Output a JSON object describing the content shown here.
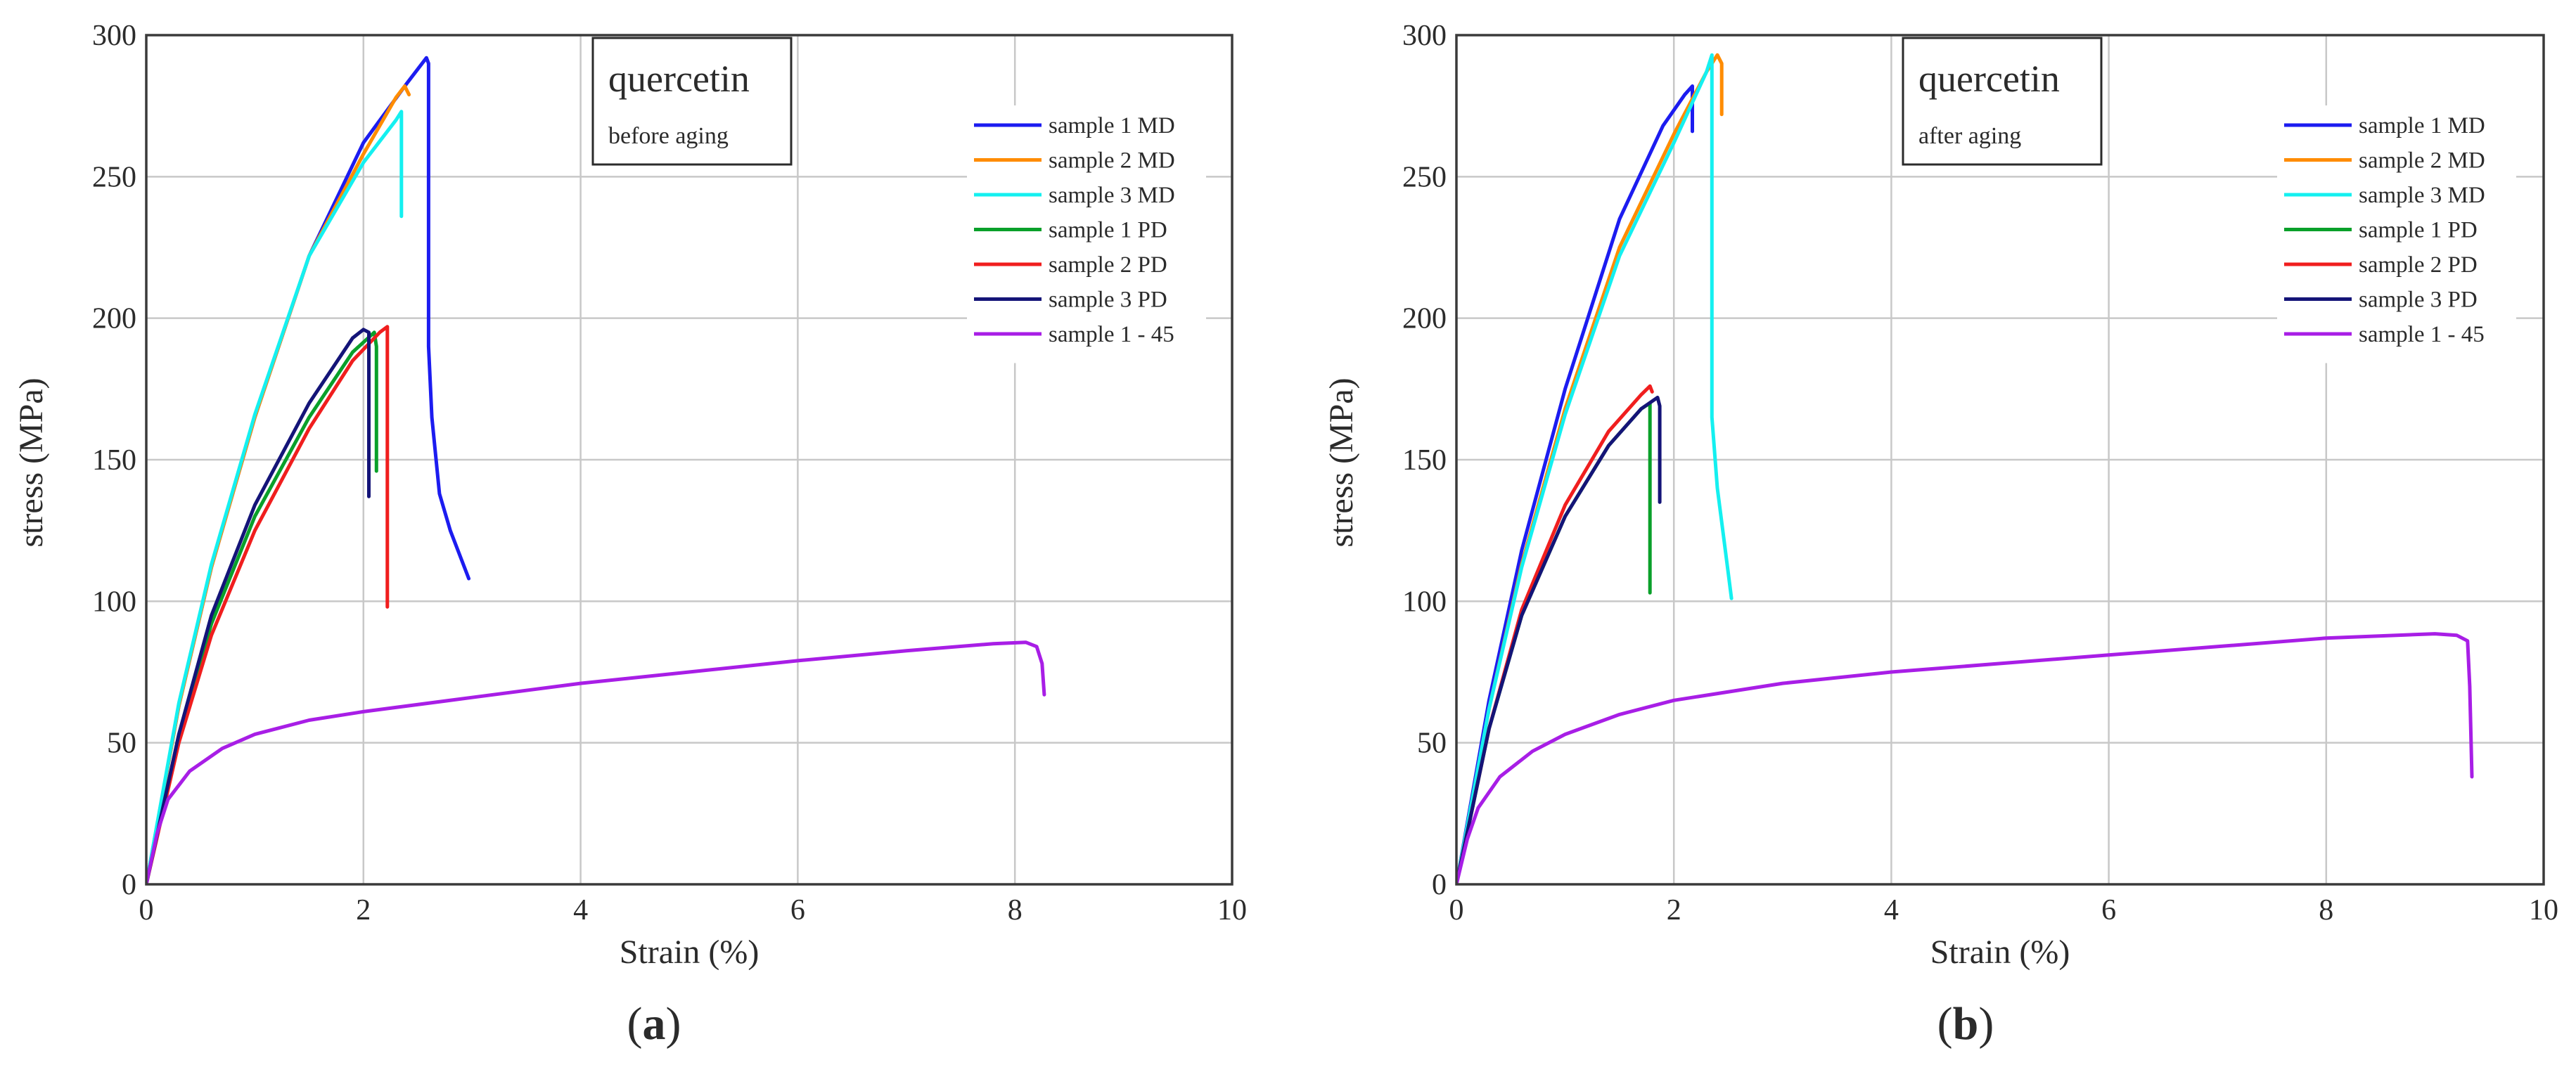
{
  "chart_data": [
    {
      "type": "line",
      "panel_label": "(a)",
      "panel_letter": "a",
      "annotation": {
        "title": "quercetin",
        "subtitle": "before aging"
      },
      "xlabel": "Strain (%)",
      "ylabel": "stress (MPa)",
      "xlim": [
        0,
        10
      ],
      "ylim": [
        0,
        300
      ],
      "xticks": [
        0,
        2,
        4,
        6,
        8,
        10
      ],
      "yticks": [
        0,
        50,
        100,
        150,
        200,
        250,
        300
      ],
      "grid": true,
      "legend_position": "top-right",
      "series": [
        {
          "name": "sample 1 MD",
          "color": "#1c1cf0",
          "points": [
            [
              0,
              0
            ],
            [
              0.3,
              63
            ],
            [
              0.6,
              112
            ],
            [
              1.0,
              165
            ],
            [
              1.5,
              222
            ],
            [
              2.0,
              262
            ],
            [
              2.4,
              283
            ],
            [
              2.58,
              292
            ],
            [
              2.6,
              290
            ],
            [
              2.6,
              190
            ],
            [
              2.63,
              165
            ],
            [
              2.7,
              138
            ],
            [
              2.8,
              125
            ],
            [
              2.97,
              108
            ]
          ]
        },
        {
          "name": "sample 2 MD",
          "color": "#ff8c00",
          "points": [
            [
              0,
              0
            ],
            [
              0.3,
              63
            ],
            [
              0.6,
              112
            ],
            [
              1.0,
              165
            ],
            [
              1.5,
              222
            ],
            [
              2.0,
              258
            ],
            [
              2.3,
              278
            ],
            [
              2.38,
              282
            ],
            [
              2.42,
              279
            ]
          ]
        },
        {
          "name": "sample 3 MD",
          "color": "#14f0f0",
          "points": [
            [
              0,
              0
            ],
            [
              0.3,
              64
            ],
            [
              0.6,
              113
            ],
            [
              1.0,
              166
            ],
            [
              1.5,
              222
            ],
            [
              2.0,
              255
            ],
            [
              2.3,
              270
            ],
            [
              2.35,
              273
            ],
            [
              2.35,
              236
            ]
          ]
        },
        {
          "name": "sample 1 PD",
          "color": "#0aa02a",
          "points": [
            [
              0,
              0
            ],
            [
              0.3,
              52
            ],
            [
              0.6,
              92
            ],
            [
              1.0,
              130
            ],
            [
              1.5,
              165
            ],
            [
              1.9,
              188
            ],
            [
              2.1,
              195
            ],
            [
              2.12,
              190
            ],
            [
              2.12,
              146
            ]
          ]
        },
        {
          "name": "sample 2 PD",
          "color": "#f01e1e",
          "points": [
            [
              0,
              0
            ],
            [
              0.3,
              50
            ],
            [
              0.6,
              88
            ],
            [
              1.0,
              125
            ],
            [
              1.5,
              161
            ],
            [
              1.9,
              185
            ],
            [
              2.15,
              195
            ],
            [
              2.22,
              197
            ],
            [
              2.22,
              110
            ],
            [
              2.22,
              98
            ]
          ]
        },
        {
          "name": "sample 3 PD",
          "color": "#141478",
          "points": [
            [
              0,
              0
            ],
            [
              0.3,
              53
            ],
            [
              0.6,
              95
            ],
            [
              1.0,
              134
            ],
            [
              1.5,
              170
            ],
            [
              1.9,
              193
            ],
            [
              2.0,
              196
            ],
            [
              2.05,
              195
            ],
            [
              2.05,
              137
            ]
          ]
        },
        {
          "name": "sample 1 - 45",
          "color": "#a81ee6",
          "points": [
            [
              0,
              0
            ],
            [
              0.1,
              18
            ],
            [
              0.2,
              30
            ],
            [
              0.4,
              40
            ],
            [
              0.7,
              48
            ],
            [
              1.0,
              53
            ],
            [
              1.5,
              58
            ],
            [
              2.0,
              61
            ],
            [
              3.0,
              66
            ],
            [
              4.0,
              71
            ],
            [
              5.0,
              75
            ],
            [
              6.0,
              79
            ],
            [
              7.0,
              82.5
            ],
            [
              7.8,
              85
            ],
            [
              8.1,
              85.5
            ],
            [
              8.2,
              84
            ],
            [
              8.25,
              78
            ],
            [
              8.27,
              67
            ]
          ]
        }
      ]
    },
    {
      "type": "line",
      "panel_label": "(b)",
      "panel_letter": "b",
      "annotation": {
        "title": "quercetin",
        "subtitle": "after aging"
      },
      "xlabel": "Strain (%)",
      "ylabel": "stress (MPa)",
      "xlim": [
        0,
        10
      ],
      "ylim": [
        0,
        300
      ],
      "xticks": [
        0,
        2,
        4,
        6,
        8,
        10
      ],
      "yticks": [
        0,
        50,
        100,
        150,
        200,
        250,
        300
      ],
      "grid": true,
      "legend_position": "top-right",
      "series": [
        {
          "name": "sample 1 MD",
          "color": "#1c1cf0",
          "points": [
            [
              0,
              0
            ],
            [
              0.3,
              65
            ],
            [
              0.6,
              118
            ],
            [
              1.0,
              175
            ],
            [
              1.5,
              235
            ],
            [
              1.9,
              268
            ],
            [
              2.1,
              279
            ],
            [
              2.17,
              282
            ],
            [
              2.17,
              266
            ]
          ]
        },
        {
          "name": "sample 2 MD",
          "color": "#ff8c00",
          "points": [
            [
              0,
              0
            ],
            [
              0.3,
              62
            ],
            [
              0.6,
              113
            ],
            [
              1.0,
              168
            ],
            [
              1.5,
              225
            ],
            [
              2.0,
              265
            ],
            [
              2.3,
              287
            ],
            [
              2.4,
              293
            ],
            [
              2.44,
              290
            ],
            [
              2.44,
              272
            ]
          ]
        },
        {
          "name": "sample 3 MD",
          "color": "#14f0f0",
          "points": [
            [
              0,
              0
            ],
            [
              0.3,
              62
            ],
            [
              0.6,
              112
            ],
            [
              1.0,
              166
            ],
            [
              1.5,
              222
            ],
            [
              2.0,
              262
            ],
            [
              2.3,
              287
            ],
            [
              2.35,
              293
            ],
            [
              2.35,
              165
            ],
            [
              2.4,
              140
            ],
            [
              2.5,
              110
            ],
            [
              2.53,
              101
            ]
          ]
        },
        {
          "name": "sample 1 PD",
          "color": "#0aa02a",
          "points": [
            [
              0,
              0
            ],
            [
              0.3,
              55
            ],
            [
              0.6,
              95
            ],
            [
              1.0,
              130
            ],
            [
              1.4,
              155
            ],
            [
              1.7,
              168
            ],
            [
              1.78,
              170
            ],
            [
              1.78,
              103
            ]
          ]
        },
        {
          "name": "sample 2 PD",
          "color": "#f01e1e",
          "points": [
            [
              0,
              0
            ],
            [
              0.3,
              55
            ],
            [
              0.6,
              97
            ],
            [
              1.0,
              134
            ],
            [
              1.4,
              160
            ],
            [
              1.7,
              173
            ],
            [
              1.78,
              176
            ],
            [
              1.8,
              174
            ]
          ]
        },
        {
          "name": "sample 3 PD",
          "color": "#141478",
          "points": [
            [
              0,
              0
            ],
            [
              0.3,
              55
            ],
            [
              0.6,
              95
            ],
            [
              1.0,
              130
            ],
            [
              1.4,
              155
            ],
            [
              1.7,
              168
            ],
            [
              1.85,
              172
            ],
            [
              1.87,
              169
            ],
            [
              1.87,
              135
            ]
          ]
        },
        {
          "name": "sample 1 - 45",
          "color": "#a81ee6",
          "points": [
            [
              0,
              0
            ],
            [
              0.1,
              16
            ],
            [
              0.2,
              27
            ],
            [
              0.4,
              38
            ],
            [
              0.7,
              47
            ],
            [
              1.0,
              53
            ],
            [
              1.5,
              60
            ],
            [
              2.0,
              65
            ],
            [
              3.0,
              71
            ],
            [
              4.0,
              75
            ],
            [
              5.0,
              78
            ],
            [
              6.0,
              81
            ],
            [
              7.0,
              84
            ],
            [
              8.0,
              87
            ],
            [
              9.0,
              88.5
            ],
            [
              9.2,
              88
            ],
            [
              9.3,
              86
            ],
            [
              9.32,
              70
            ],
            [
              9.34,
              38
            ]
          ]
        }
      ]
    }
  ]
}
